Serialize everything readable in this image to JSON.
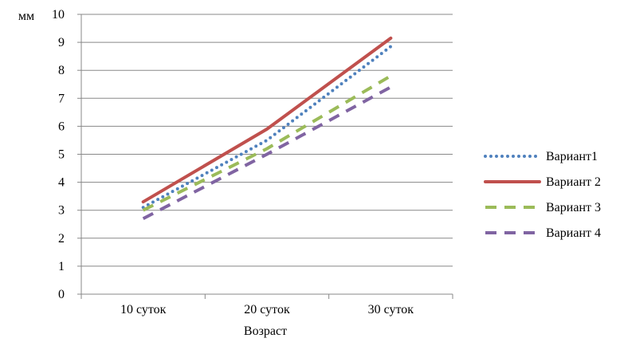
{
  "chart_data": {
    "type": "line",
    "categories": [
      "10 суток",
      "20 суток",
      "30 суток"
    ],
    "series": [
      {
        "name": "Вариант1",
        "values": [
          3.1,
          5.5,
          8.85
        ],
        "color": "#4f81bd",
        "style": "dotted"
      },
      {
        "name": "Вариант 2",
        "values": [
          3.3,
          5.9,
          9.15
        ],
        "color": "#c0504d",
        "style": "solid"
      },
      {
        "name": "Вариант 3",
        "values": [
          3.0,
          5.2,
          7.8
        ],
        "color": "#9bbb59",
        "style": "dashed"
      },
      {
        "name": "Вариант 4",
        "values": [
          2.7,
          5.0,
          7.4
        ],
        "color": "#8064a2",
        "style": "dashed"
      }
    ],
    "xlabel": "Возраст",
    "ylabel": "мм",
    "ylim": [
      0,
      10
    ],
    "yticks": [
      "0",
      "1",
      "2",
      "3",
      "4",
      "5",
      "6",
      "7",
      "8",
      "9",
      "10"
    ],
    "grid": "horizontal",
    "legend": "right"
  }
}
